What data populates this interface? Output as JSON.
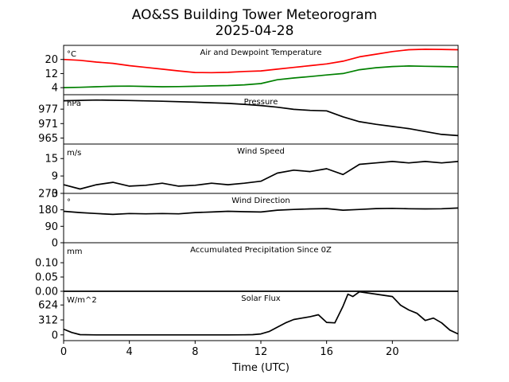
{
  "title": "AO&SS Building Tower Meteorogram",
  "subtitle": "2025-04-28",
  "xlabel": "Time (UTC)",
  "x_ticks": [
    0,
    4,
    8,
    12,
    16,
    20
  ],
  "xlim": [
    0,
    24
  ],
  "chart_data": [
    {
      "type": "line",
      "title": "Air and Dewpoint Temperature",
      "unit": "°C",
      "ylim": [
        0,
        28
      ],
      "y_ticks": [
        4,
        12,
        20
      ],
      "series": [
        {
          "color": "#ff0000",
          "x": [
            0,
            1,
            2,
            3,
            4,
            5,
            6,
            7,
            8,
            9,
            10,
            11,
            12,
            13,
            14,
            15,
            16,
            17,
            18,
            19,
            20,
            21,
            22,
            23,
            24
          ],
          "values": [
            20,
            19.5,
            18.5,
            17.8,
            16.5,
            15.5,
            14.5,
            13.5,
            12.6,
            12.5,
            12.7,
            13.2,
            13.5,
            14.5,
            15.5,
            16.5,
            17.5,
            19,
            21.5,
            23,
            24.5,
            25.5,
            25.8,
            25.7,
            25.5
          ]
        },
        {
          "color": "#008000",
          "x": [
            0,
            1,
            2,
            3,
            4,
            5,
            6,
            7,
            8,
            9,
            10,
            11,
            12,
            13,
            14,
            15,
            16,
            17,
            18,
            19,
            20,
            21,
            22,
            23,
            24
          ],
          "values": [
            4,
            4.2,
            4.5,
            4.8,
            4.9,
            4.7,
            4.5,
            4.6,
            4.8,
            5,
            5.2,
            5.6,
            6.3,
            8.5,
            9.5,
            10.3,
            11.2,
            12,
            14.2,
            15.3,
            16,
            16.3,
            16.1,
            16,
            15.8
          ]
        }
      ]
    },
    {
      "type": "line",
      "title": "Pressure",
      "unit": "hPa",
      "ylim": [
        962.5,
        983
      ],
      "y_ticks": [
        965,
        971,
        977
      ],
      "series": [
        {
          "color": "#000000",
          "x": [
            0,
            2,
            4,
            6,
            8,
            10,
            11,
            12,
            13,
            14,
            15,
            16,
            17,
            18,
            19,
            20,
            21,
            22,
            23,
            24
          ],
          "values": [
            980.5,
            980.8,
            980.6,
            980.3,
            979.9,
            979.4,
            979,
            978.5,
            977.8,
            976.9,
            976.5,
            976.3,
            973.8,
            971.8,
            970.7,
            969.8,
            968.9,
            967.7,
            966.5,
            966
          ]
        }
      ]
    },
    {
      "type": "line",
      "title": "Wind Speed",
      "unit": "m/s",
      "ylim": [
        3,
        20
      ],
      "y_ticks": [
        3,
        9,
        15
      ],
      "series": [
        {
          "color": "#000000",
          "x": [
            0,
            1,
            2,
            3,
            4,
            5,
            6,
            7,
            8,
            9,
            10,
            11,
            12,
            13,
            14,
            15,
            16,
            17,
            18,
            19,
            20,
            21,
            22,
            23,
            24
          ],
          "values": [
            6,
            4.5,
            6,
            6.8,
            5.5,
            5.8,
            6.5,
            5.5,
            5.8,
            6.5,
            6,
            6.5,
            7.2,
            10,
            11,
            10.5,
            11.5,
            9.5,
            13,
            13.5,
            14,
            13.5,
            14,
            13.5,
            14
          ]
        }
      ]
    },
    {
      "type": "line",
      "title": "Wind Direction",
      "unit": "°",
      "ylim": [
        0,
        270
      ],
      "y_ticks": [
        0,
        90,
        180,
        270
      ],
      "series": [
        {
          "color": "#000000",
          "x": [
            0,
            1,
            2,
            3,
            4,
            5,
            6,
            7,
            8,
            9,
            10,
            11,
            12,
            13,
            14,
            15,
            16,
            17,
            18,
            19,
            20,
            21,
            22,
            23,
            24
          ],
          "values": [
            172,
            165,
            160,
            155,
            160,
            158,
            160,
            158,
            165,
            168,
            172,
            170,
            168,
            178,
            182,
            185,
            187,
            178,
            182,
            187,
            188,
            186,
            185,
            186,
            190
          ]
        }
      ]
    },
    {
      "type": "line",
      "title": "Accumulated Precipitation Since 0Z",
      "unit": "mm",
      "ylim": [
        0,
        0.17
      ],
      "y_ticks": [
        0.0,
        0.05,
        0.1
      ],
      "y_tick_labels": [
        "0.00",
        "0.05",
        "0.10"
      ],
      "series": [
        {
          "color": "#000000",
          "x": [
            0,
            24
          ],
          "values": [
            0,
            0
          ]
        }
      ]
    },
    {
      "type": "line",
      "title": "Solar Flux",
      "unit": "W/m^2",
      "ylim": [
        -120,
        910
      ],
      "y_ticks": [
        0,
        312,
        624
      ],
      "series": [
        {
          "color": "#000000",
          "x": [
            0,
            0.5,
            1,
            2,
            4,
            6,
            8,
            10,
            11,
            11.5,
            12,
            12.5,
            13,
            13.5,
            14,
            14.5,
            15,
            15.5,
            16,
            16.5,
            17,
            17.3,
            17.6,
            18,
            19,
            20,
            20.5,
            21,
            21.5,
            22,
            22.5,
            23,
            23.5,
            24
          ],
          "values": [
            120,
            50,
            5,
            0,
            0,
            0,
            0,
            0,
            2,
            5,
            20,
            70,
            160,
            250,
            320,
            350,
            380,
            420,
            260,
            250,
            600,
            850,
            800,
            900,
            850,
            800,
            620,
            520,
            450,
            300,
            350,
            250,
            100,
            20
          ]
        }
      ]
    }
  ]
}
